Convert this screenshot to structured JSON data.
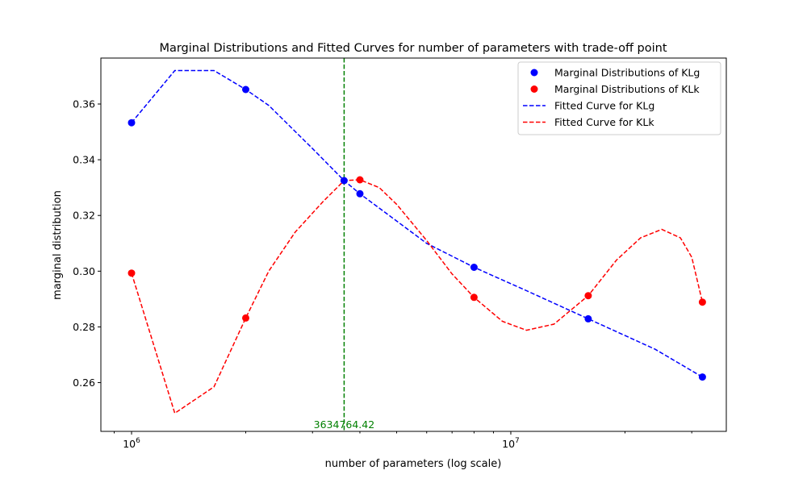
{
  "chart_data": {
    "type": "scatter",
    "title": "Marginal Distributions and Fitted Curves for number of parameters with trade-off point",
    "xlabel": "number of parameters (log scale)",
    "ylabel": "marginal distribution",
    "xscale": "log",
    "xlim": [
      830000,
      37000000
    ],
    "ylim": [
      0.2425,
      0.3765
    ],
    "x_ticks": [
      {
        "value": 1000000,
        "base": "10",
        "exp": "6"
      },
      {
        "value": 10000000,
        "base": "10",
        "exp": "7"
      }
    ],
    "y_ticks": [
      0.26,
      0.28,
      0.3,
      0.32,
      0.34,
      0.36
    ],
    "y_tick_labels": [
      "0.26",
      "0.28",
      "0.30",
      "0.32",
      "0.34",
      "0.36"
    ],
    "grid": false,
    "legend_position": "top-right",
    "colors": {
      "klg": "#0000ff",
      "klk": "#ff0000",
      "tradeoff": "#008000"
    },
    "series": [
      {
        "name": "Marginal Distributions of KLg",
        "kind": "scatter",
        "color": "#0000ff",
        "x": [
          1000000,
          2000000,
          3634764,
          4000000,
          8000000,
          16000000,
          32000000
        ],
        "y": [
          0.3533,
          0.3652,
          0.3325,
          0.3278,
          0.3014,
          0.2829,
          0.262
        ]
      },
      {
        "name": "Marginal Distributions of KLk",
        "kind": "scatter",
        "color": "#ff0000",
        "x": [
          1000000,
          2000000,
          4000000,
          8000000,
          16000000,
          32000000
        ],
        "y": [
          0.2993,
          0.2832,
          0.3328,
          0.2906,
          0.2912,
          0.2889
        ]
      },
      {
        "name": "Fitted Curve for KLg",
        "kind": "line",
        "dashed": true,
        "color": "#0000ff",
        "x": [
          1000000,
          1300000,
          1650000,
          2000000,
          2300000,
          3000000,
          3634764,
          4000000,
          5000000,
          6000000,
          8000000,
          11000000,
          16000000,
          24000000,
          32000000
        ],
        "y": [
          0.3533,
          0.372,
          0.372,
          0.3652,
          0.3595,
          0.344,
          0.3325,
          0.3278,
          0.318,
          0.31,
          0.3014,
          0.293,
          0.2829,
          0.272,
          0.262
        ]
      },
      {
        "name": "Fitted Curve for KLk",
        "kind": "line",
        "dashed": true,
        "color": "#ff0000",
        "x": [
          1000000,
          1300000,
          1650000,
          2000000,
          2300000,
          2700000,
          3200000,
          3634764,
          4000000,
          4500000,
          5000000,
          6000000,
          7000000,
          8000000,
          9500000,
          11000000,
          13000000,
          16000000,
          19000000,
          22000000,
          25000000,
          28000000,
          30000000,
          32000000
        ],
        "y": [
          0.2993,
          0.249,
          0.2585,
          0.2832,
          0.3,
          0.314,
          0.325,
          0.3325,
          0.3328,
          0.33,
          0.324,
          0.311,
          0.299,
          0.2906,
          0.282,
          0.2788,
          0.281,
          0.2912,
          0.304,
          0.312,
          0.315,
          0.312,
          0.305,
          0.2889
        ]
      }
    ],
    "tradeoff": {
      "x": 3634764.42,
      "y": 0.3325,
      "label": "3634764.42",
      "color": "#008000"
    },
    "legend": [
      {
        "label": "Marginal Distributions of KLg",
        "kind": "marker",
        "color": "#0000ff"
      },
      {
        "label": "Marginal Distributions of KLk",
        "kind": "marker",
        "color": "#ff0000"
      },
      {
        "label": "Fitted Curve for KLg",
        "kind": "dash",
        "color": "#0000ff"
      },
      {
        "label": "Fitted Curve for KLk",
        "kind": "dash",
        "color": "#ff0000"
      }
    ]
  }
}
